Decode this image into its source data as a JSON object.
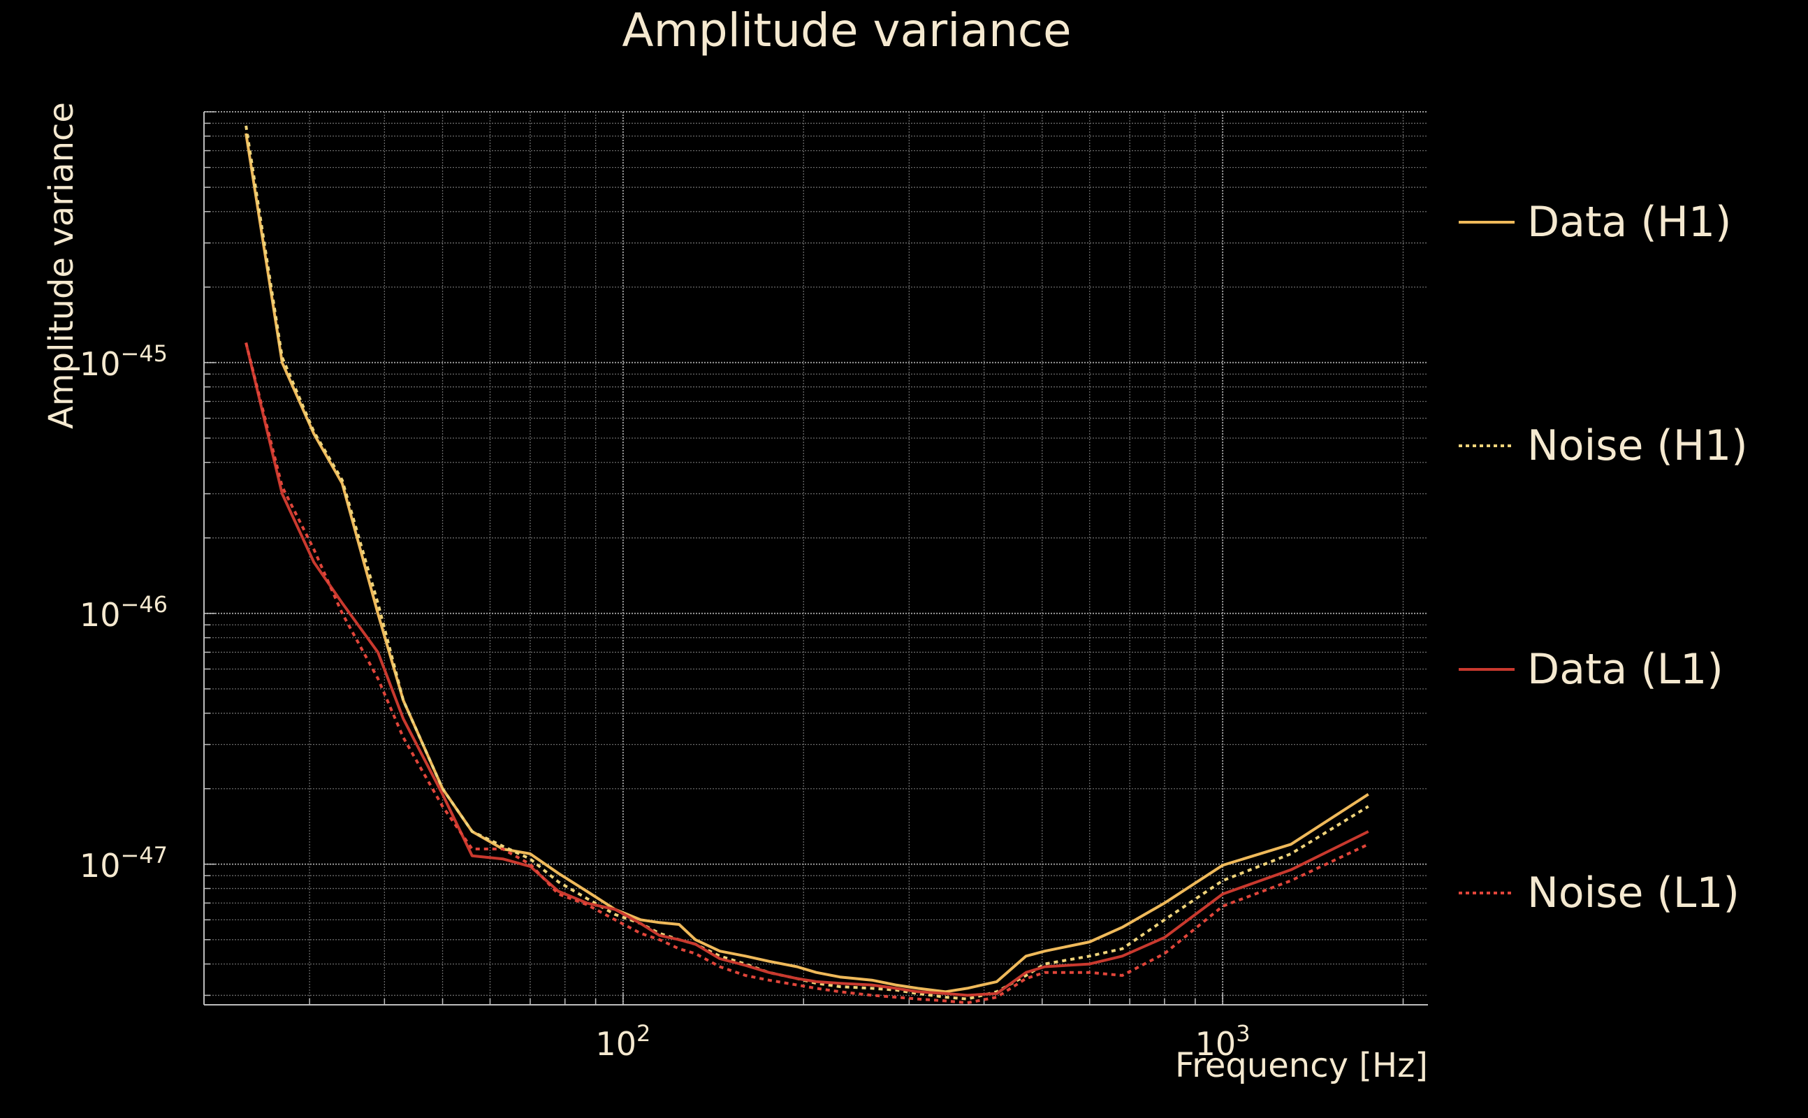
{
  "chart_data": {
    "type": "line",
    "title": "Amplitude variance",
    "xlabel": "Frequency [Hz]",
    "ylabel": "Amplitude variance",
    "x_scale": "log",
    "y_scale": "log",
    "xlim": [
      20,
      2200
    ],
    "ylim": [
      2.75e-48,
      1e-44
    ],
    "grid": true,
    "legend_position": "right",
    "x_ticks": [
      {
        "value": 100,
        "base": "10",
        "exp": "2"
      },
      {
        "value": 1000,
        "base": "10",
        "exp": "3"
      }
    ],
    "y_ticks": [
      {
        "value": 1e-45,
        "base": "10",
        "exp": "−45"
      },
      {
        "value": 1e-46,
        "base": "10",
        "exp": "−46"
      },
      {
        "value": 1e-47,
        "base": "10",
        "exp": "−47"
      }
    ],
    "series": [
      {
        "name": "Data (H1)",
        "color": "#efb95a",
        "dash": "solid",
        "x": [
          23.5,
          27,
          30.5,
          34,
          39,
          43,
          50,
          56,
          63,
          70,
          78,
          87,
          97,
          107,
          115,
          124,
          132,
          145,
          160,
          175,
          195,
          210,
          230,
          260,
          285,
          310,
          345,
          375,
          420,
          470,
          505,
          600,
          680,
          800,
          1000,
          1300,
          1750
        ],
        "y": [
          8.2e-45,
          1e-45,
          5.2e-46,
          3.3e-46,
          1e-46,
          4.5e-47,
          2e-47,
          1.35e-47,
          1.15e-47,
          1.1e-47,
          9.2e-48,
          7.8e-48,
          6.6e-48,
          6e-48,
          5.85e-48,
          5.75e-48,
          5e-48,
          4.5e-48,
          4.3e-48,
          4.1e-48,
          3.9e-48,
          3.7e-48,
          3.55e-48,
          3.45e-48,
          3.3e-48,
          3.2e-48,
          3.1e-48,
          3.2e-48,
          3.4e-48,
          4.3e-48,
          4.5e-48,
          4.9e-48,
          5.6e-48,
          7e-48,
          9.9e-48,
          1.2e-47,
          1.9e-47
        ]
      },
      {
        "name": "Noise (H1)",
        "color": "#efd37a",
        "dash": "dotted",
        "x": [
          23.5,
          27,
          30.5,
          34,
          39,
          43,
          50,
          56,
          63,
          70,
          78,
          87,
          97,
          107,
          115,
          124,
          132,
          145,
          160,
          175,
          195,
          210,
          230,
          260,
          285,
          310,
          345,
          375,
          420,
          470,
          505,
          600,
          680,
          800,
          1000,
          1300,
          1750
        ],
        "y": [
          8.8e-45,
          1.05e-45,
          5.3e-46,
          3.4e-46,
          1.1e-46,
          4.5e-47,
          2e-47,
          1.35e-47,
          1.18e-47,
          1.05e-47,
          8.5e-48,
          7.3e-48,
          6.3e-48,
          5.8e-48,
          5.3e-48,
          5e-48,
          4.8e-48,
          4.3e-48,
          4e-48,
          3.7e-48,
          3.5e-48,
          3.35e-48,
          3.25e-48,
          3.2e-48,
          3.15e-48,
          3.05e-48,
          2.95e-48,
          2.9e-48,
          3.1e-48,
          3.6e-48,
          4e-48,
          4.3e-48,
          4.6e-48,
          6e-48,
          8.6e-48,
          1.1e-47,
          1.7e-47
        ]
      },
      {
        "name": "Data (L1)",
        "color": "#c9392e",
        "dash": "solid",
        "x": [
          23.5,
          27,
          30.5,
          34,
          39,
          43,
          50,
          56,
          63,
          70,
          78,
          87,
          97,
          107,
          115,
          124,
          132,
          145,
          160,
          175,
          195,
          210,
          230,
          260,
          285,
          310,
          345,
          375,
          420,
          470,
          505,
          600,
          680,
          800,
          1000,
          1300,
          1750
        ],
        "y": [
          1.2e-45,
          3e-46,
          1.6e-46,
          1.1e-46,
          7e-47,
          3.8e-47,
          1.9e-47,
          1.08e-47,
          1.05e-47,
          9.8e-48,
          7.8e-48,
          7e-48,
          6.6e-48,
          5.8e-48,
          5.2e-48,
          5e-48,
          4.8e-48,
          4.2e-48,
          3.95e-48,
          3.7e-48,
          3.5e-48,
          3.4e-48,
          3.35e-48,
          3.3e-48,
          3.2e-48,
          3.1e-48,
          3.05e-48,
          3e-48,
          3.05e-48,
          3.7e-48,
          3.9e-48,
          4e-48,
          4.3e-48,
          5.1e-48,
          7.6e-48,
          9.5e-48,
          1.35e-47
        ]
      },
      {
        "name": "Noise (L1)",
        "color": "#e0453a",
        "dash": "dotted",
        "x": [
          23.5,
          27,
          30.5,
          34,
          39,
          43,
          50,
          56,
          63,
          70,
          78,
          87,
          97,
          107,
          115,
          124,
          132,
          145,
          160,
          175,
          195,
          210,
          230,
          260,
          285,
          310,
          345,
          375,
          420,
          470,
          505,
          600,
          680,
          800,
          1000,
          1300,
          1750
        ],
        "y": [
          1.2e-45,
          3.2e-46,
          1.8e-46,
          1e-46,
          5.5e-47,
          3.2e-47,
          1.7e-47,
          1.15e-47,
          1.15e-47,
          1e-47,
          7.6e-48,
          6.9e-48,
          6e-48,
          5.3e-48,
          5e-48,
          4.6e-48,
          4.4e-48,
          3.9e-48,
          3.6e-48,
          3.45e-48,
          3.3e-48,
          3.2e-48,
          3.1e-48,
          3e-48,
          2.95e-48,
          2.9e-48,
          2.85e-48,
          2.8e-48,
          2.95e-48,
          3.5e-48,
          3.7e-48,
          3.7e-48,
          3.6e-48,
          4.4e-48,
          6.8e-48,
          8.6e-48,
          1.2e-47
        ]
      }
    ]
  }
}
